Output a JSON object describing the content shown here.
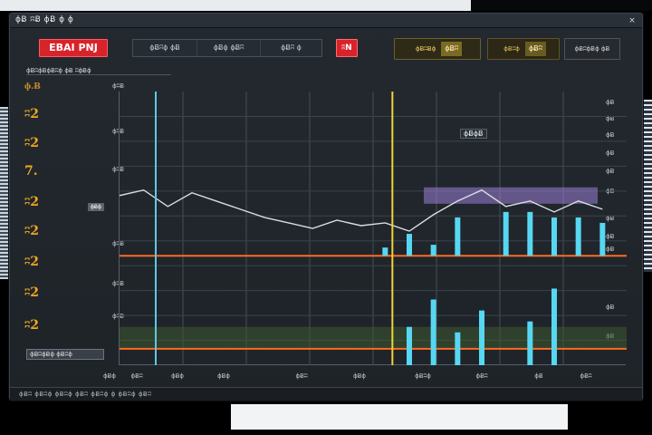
{
  "window": {
    "title": "ɸɃ ʭɃ ɸɃ ɸ ɸ",
    "close_glyph": "×"
  },
  "toolbar": {
    "brand_label": "EBAI PNJ",
    "segments": [
      "ɸɃʭɸ ɸɃ",
      "ɸɃɸ ɸɃʭ",
      "ɸɃʭ ɸ"
    ],
    "alert_label": "ʭN",
    "status": [
      {
        "label": "ɸɃʭɃɸ",
        "value": "ɸɃʭ"
      },
      {
        "label": "ɸɃʭɸ",
        "value": "ɸɃʭ"
      },
      {
        "label": "ɸɃʭɸɃɸ ɸɃ",
        "value": ""
      }
    ]
  },
  "subheader": "ɸɃʭɸɃɸɃʭɸ ɸɃ ʭɸɃɸ",
  "left_values": [
    "ɸ.Ƀ",
    "ʭ2",
    "ʭ2",
    "7.",
    "ʭ2",
    "ʭ2",
    "ʭ2",
    "ʭ2",
    "ʭ2"
  ],
  "y_ticks_left": [
    "ɸʭɃ",
    "ɸʭɃ",
    "ɸʭɃ",
    "ɸʭɃ",
    "ɸʭɃ",
    "ɸʭɃ"
  ],
  "y_ticks_right": [
    "ɸɃ",
    "ɸɃ",
    "ɸɃ",
    "ɸɃ",
    "ɸɃ",
    "ɸɃ",
    "ɸɃ",
    "ɸɃ",
    "ɸɃ",
    "ɸɃ",
    "ɸɃ"
  ],
  "x_ticks": [
    "ɸɃɸ",
    "ɸɃʭ",
    "ɸɃɸ",
    "ɸɃɸ",
    "ɸɃʭ",
    "ɸɃɸ",
    "ɸɃʭɸ",
    "ɸɃʭ",
    "ɸɃ",
    "ɸɃʭ"
  ],
  "legend_label": "ɸɃʭɸɃɸ ɸɃʭɸ",
  "marker_label": "ɸɃɸɃ",
  "level_tag": "ɸɃɸ",
  "statusbar_text": "ɸɃʭ ɸɃʭɸ ɸɃʭɸ ɸɃʭ ɸɃʭɸ ɸ ɸɃʭɸ ɸɃʭ",
  "colors": {
    "accent_red": "#d9232a",
    "cursor_yellow": "#f2d23a",
    "cursor_cyan": "#5fc7e8",
    "threshold_orange": "#ff6a1f",
    "bar_cyan": "#57d7f2",
    "bar_violet": "#9a80d8",
    "band_green": "#3c5a32"
  },
  "chart_data": {
    "type": "line",
    "x": [
      0,
      1,
      2,
      3,
      4,
      5,
      6,
      7,
      8,
      9,
      10,
      11,
      12,
      13,
      14,
      15,
      16,
      17,
      18,
      19,
      20
    ],
    "series": [
      {
        "values": [
          62,
          64,
          58,
          63,
          60,
          57,
          54,
          52,
          50,
          53,
          51,
          52,
          49,
          55,
          60,
          64,
          58,
          60,
          56,
          60,
          57
        ]
      }
    ],
    "bars": {
      "upper": [
        {
          "x": 11,
          "value": 3
        },
        {
          "x": 12,
          "value": 8
        },
        {
          "x": 13,
          "value": 4
        },
        {
          "x": 14,
          "value": 14
        },
        {
          "x": 16,
          "value": 16
        },
        {
          "x": 17,
          "value": 16
        },
        {
          "x": 18,
          "value": 14
        },
        {
          "x": 19,
          "value": 14
        },
        {
          "x": 20,
          "value": 12
        }
      ],
      "lower": [
        {
          "x": 12,
          "value": 8
        },
        {
          "x": 13,
          "value": 18
        },
        {
          "x": 14,
          "value": 6
        },
        {
          "x": 15,
          "value": 14
        },
        {
          "x": 17,
          "value": 10
        },
        {
          "x": 18,
          "value": 22
        }
      ]
    },
    "cursors": [
      {
        "x": 1.5,
        "color": "#5fc7e8"
      },
      {
        "x": 11.3,
        "color": "#f2d23a"
      }
    ],
    "threshold_upper": 40,
    "threshold_lower": 6,
    "xlim": [
      0,
      21
    ],
    "ylim": [
      0,
      100
    ],
    "grid": true
  }
}
